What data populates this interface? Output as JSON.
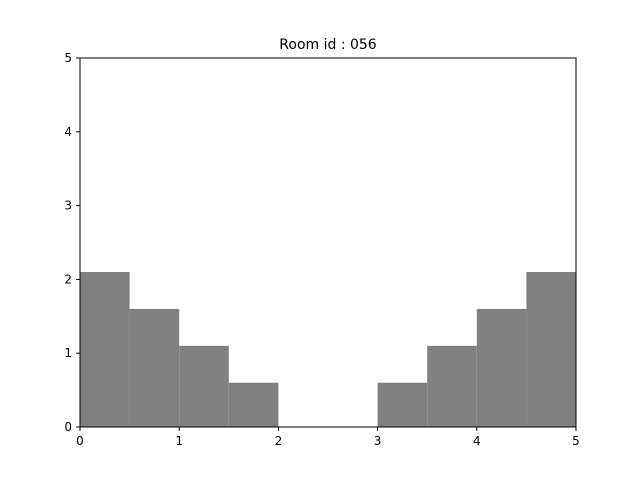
{
  "chart_data": {
    "type": "area",
    "title": "Room id : 056",
    "xlabel": "",
    "ylabel": "",
    "xlim": [
      0,
      5
    ],
    "ylim": [
      0,
      5
    ],
    "xticks": [
      0,
      1,
      2,
      3,
      4,
      5
    ],
    "yticks": [
      0,
      1,
      2,
      3,
      4,
      5
    ],
    "grid": false,
    "fill_color": "#808080",
    "blocks": [
      {
        "x0": 0.0,
        "x1": 0.5,
        "height": 2.1
      },
      {
        "x0": 0.5,
        "x1": 1.0,
        "height": 1.6
      },
      {
        "x0": 1.0,
        "x1": 1.5,
        "height": 1.1
      },
      {
        "x0": 1.5,
        "x1": 2.0,
        "height": 0.6
      },
      {
        "x0": 3.0,
        "x1": 3.5,
        "height": 0.6
      },
      {
        "x0": 3.5,
        "x1": 4.0,
        "height": 1.1
      },
      {
        "x0": 4.0,
        "x1": 4.5,
        "height": 1.6
      },
      {
        "x0": 4.5,
        "x1": 5.0,
        "height": 2.1
      }
    ]
  }
}
